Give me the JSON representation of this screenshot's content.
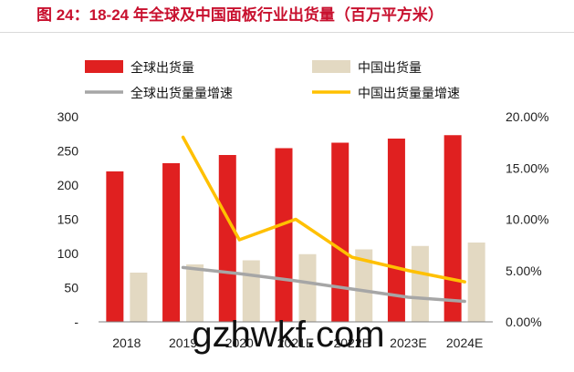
{
  "chart_data": {
    "type": "bar",
    "title": "图 24：18-24 年全球及中国面板行业出货量（百万平方米）",
    "categories": [
      "2018",
      "2019",
      "2020",
      "2021E",
      "2022E",
      "2023E",
      "2024E"
    ],
    "series": [
      {
        "name": "全球出货量",
        "type": "bar",
        "axis": "left",
        "color": "#e02020",
        "values": [
          220,
          232,
          244,
          254,
          262,
          268,
          273
        ]
      },
      {
        "name": "中国出货量",
        "type": "bar",
        "axis": "left",
        "color": "#e3d9c2",
        "values": [
          72,
          84,
          90,
          99,
          106,
          111,
          116
        ]
      },
      {
        "name": "全球出货量量增速",
        "type": "line",
        "axis": "right",
        "color": "#a6a6a6",
        "values": [
          null,
          5.3,
          4.7,
          4.0,
          3.2,
          2.4,
          2.0
        ]
      },
      {
        "name": "中国出货量量增速",
        "type": "line",
        "axis": "right",
        "color": "#ffc000",
        "values": [
          null,
          18.0,
          8.0,
          10.0,
          6.3,
          5.0,
          3.9
        ]
      }
    ],
    "y_left": {
      "min": 0,
      "max": 300,
      "ticks": [
        "300",
        "250",
        "200",
        "150",
        "100",
        "50",
        "-"
      ]
    },
    "y_right": {
      "min": 0,
      "max": 20,
      "ticks": [
        "20.00%",
        "15.00%",
        "10.00%",
        "5.00%",
        "0.00%"
      ]
    },
    "legend_position": "top",
    "grid": false
  },
  "watermark": "gzhwkf.com"
}
